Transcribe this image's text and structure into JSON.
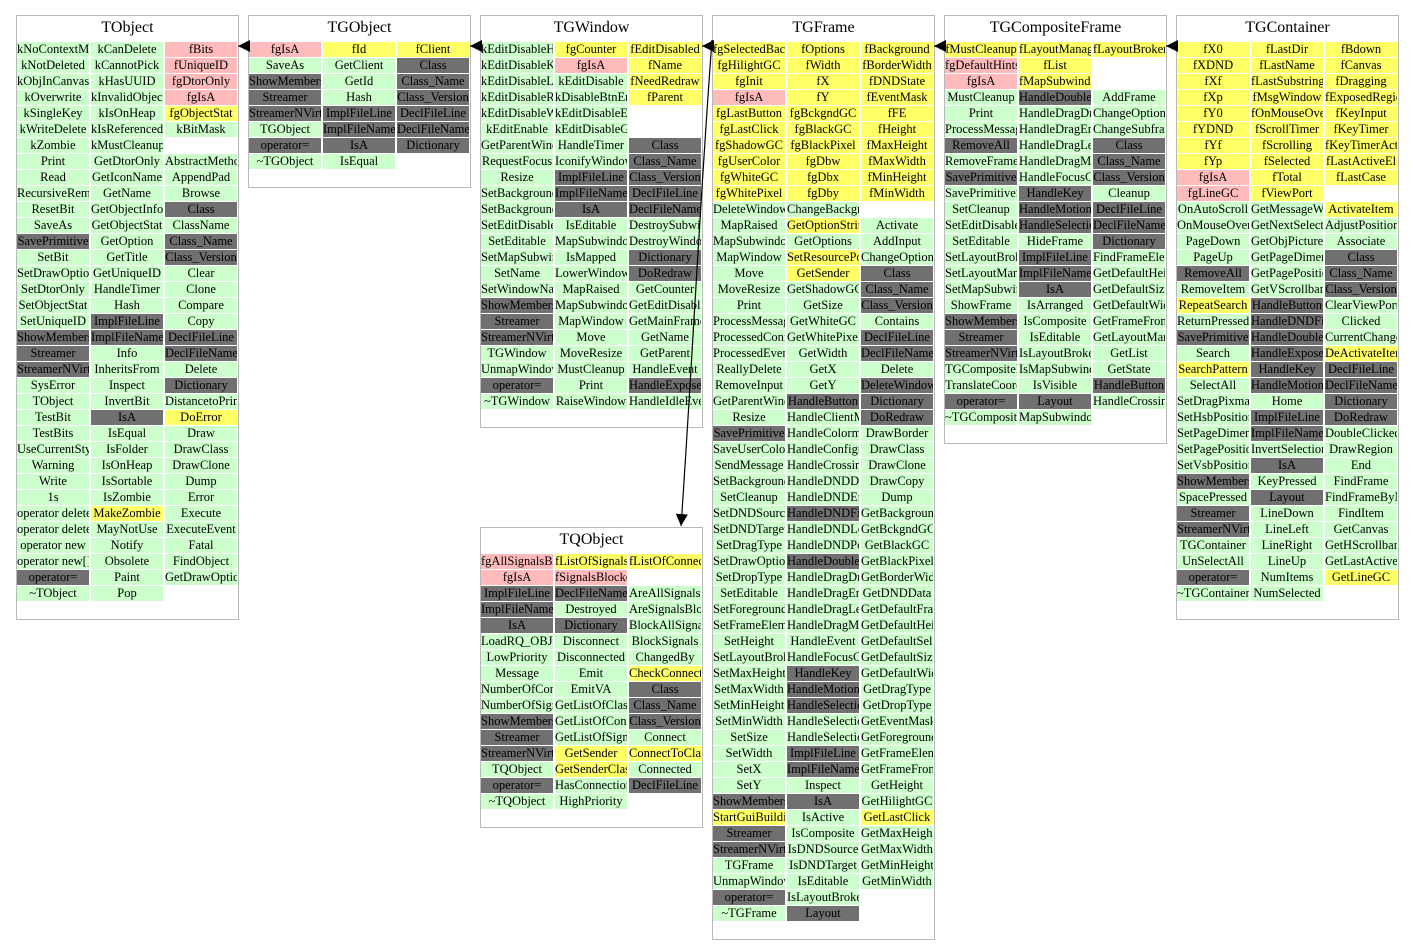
{
  "classes": [
    {
      "name": "TObject",
      "columns": [
        [
          "kNoContextMenu",
          "kNotDeleted",
          "kObjInCanvas",
          "kOverwrite",
          "kSingleKey",
          "kWriteDelete",
          "kZombie",
          "Print",
          "Read",
          "RecursiveRemove",
          "ResetBit",
          "SaveAs",
          "SavePrimitive",
          "SetBit",
          "SetDrawOption",
          "SetDtorOnly",
          "SetObjectStat",
          "SetUniqueID",
          "ShowMembers",
          "Streamer",
          "StreamerNVirtual",
          "SysError",
          "TObject",
          "TestBit",
          "TestBits",
          "UseCurrentStyle",
          "Warning",
          "Write",
          "1s",
          "operator delete",
          "operator delete[]",
          "operator new",
          "operator new[]",
          "operator=",
          "~TObject"
        ],
        [
          "kCanDelete",
          "kCannotPick",
          "kHasUUID",
          "kInvalidObject",
          "kIsOnHeap",
          "kIsReferenced",
          "kMustCleanup",
          "GetDtorOnly",
          "GetIconName",
          "GetName",
          "GetObjectInfo",
          "GetObjectStat",
          "GetOption",
          "GetTitle",
          "GetUniqueID",
          "HandleTimer",
          "Hash",
          "ImplFileLine",
          "ImplFileName",
          "Info",
          "InheritsFrom",
          "Inspect",
          "InvertBit",
          "IsA",
          "IsEqual",
          "IsFolder",
          "IsOnHeap",
          "IsSortable",
          "IsZombie",
          "MakeZombie",
          "MayNotUse",
          "Notify",
          "Obsolete",
          "Paint",
          "Pop"
        ],
        [
          "fBits",
          "fUniqueID",
          "fgDtorOnly",
          "fgIsA",
          "fgObjectStat",
          "kBitMask",
          "",
          "AbstractMethod",
          "AppendPad",
          "Browse",
          "Class",
          "ClassName",
          "Class_Name",
          "Class_Version",
          "Clear",
          "Clone",
          "Compare",
          "Copy",
          "DeclFileLine",
          "DeclFileName",
          "Delete",
          "Dictionary",
          "DistancetoPrimitive",
          "DoError",
          "Draw",
          "DrawClass",
          "DrawClone",
          "Dump",
          "Error",
          "Execute",
          "ExecuteEvent",
          "Fatal",
          "FindObject",
          "GetDrawOption"
        ]
      ]
    },
    {
      "name": "TGObject",
      "columns": [
        [
          "fgIsA",
          "SaveAs",
          "ShowMembers",
          "Streamer",
          "StreamerNVirtual",
          "TGObject",
          "operator=",
          "~TGObject"
        ],
        [
          "fId",
          "GetClient",
          "GetId",
          "Hash",
          "ImplFileLine",
          "ImplFileName",
          "IsA",
          "IsEqual"
        ],
        [
          "fClient",
          "Class",
          "Class_Name",
          "Class_Version",
          "DeclFileLine",
          "DeclFileName",
          "Dictionary"
        ]
      ]
    },
    {
      "name": "TGWindow",
      "columns": [
        [
          "kEditDisableHeight",
          "kEditDisableKeyEnable",
          "kEditDisableLayout",
          "kEditDisableResize",
          "kEditDisableWidth",
          "kEditEnable",
          "GetParentWindow",
          "RequestFocus",
          "Resize",
          "SetBackgroundColor",
          "SetBackgroundPixmap",
          "SetEditDisabled",
          "SetEditable",
          "SetMapSubwindows",
          "SetName",
          "SetWindowName",
          "ShowMembers",
          "Streamer",
          "StreamerNVirtual",
          "TGWindow",
          "UnmapWindow",
          "operator=",
          "~TGWindow"
        ],
        [
          "fgCounter",
          "fgIsA",
          "kEditDisable",
          "kDisableBtnEnable",
          "kEditDisableEvents",
          "kEditDisableGrab",
          "HandleTimer",
          "IconifyWindow",
          "ImplFileLine",
          "ImplFileName",
          "IsA",
          "IsEditable",
          "MapSubwindows",
          "IsMapped",
          "LowerWindow",
          "MapRaised",
          "MapSubwindows",
          "MapWindow",
          "Move",
          "MoveResize",
          "MustCleanup",
          "Print",
          "RaiseWindow"
        ],
        [
          "fEditDisabled",
          "fName",
          "fNeedRedraw",
          "fParent",
          "",
          "",
          "Class",
          "Class_Name",
          "Class_Version",
          "DeclFileLine",
          "DeclFileName",
          "DestroySubwindows",
          "DestroyWindow",
          "Dictionary",
          "DoRedraw",
          "GetCounter",
          "GetEditDisabled",
          "GetMainFrame",
          "GetName",
          "GetParent",
          "HandleEvent",
          "HandleExpose",
          "HandleIdleEvent"
        ]
      ]
    },
    {
      "name": "TGFrame",
      "columns": [
        [
          "fgSelectedBackground",
          "fgHilightGC",
          "fgInit",
          "fgIsA",
          "fgLastButton",
          "fgLastClick",
          "fgShadowGC",
          "fgUserColor",
          "fgWhiteGC",
          "fgWhitePixel",
          "DeleteWindowCallback",
          "MapRaised",
          "MapSubwindows",
          "MapWindow",
          "Move",
          "MoveResize",
          "Print",
          "ProcessMessage",
          "ProcessedConfigure",
          "ProcessedEvent",
          "ReallyDelete",
          "RemoveInput",
          "GetParentWindow",
          "Resize",
          "SavePrimitive",
          "SaveUserColor",
          "SendMessage",
          "SetBackgroundColor",
          "SetCleanup",
          "SetDNDSource",
          "SetDNDTarget",
          "SetDragType",
          "SetDrawOption",
          "SetDropType",
          "SetEditable",
          "SetForegroundColor",
          "SetFrameElement",
          "SetHeight",
          "SetLayoutBroken",
          "SetMaxHeight",
          "SetMaxWidth",
          "SetMinHeight",
          "SetMinWidth",
          "SetSize",
          "SetWidth",
          "SetX",
          "SetY",
          "ShowMembers",
          "StartGuiBuilding",
          "Streamer",
          "StreamerNVirtual",
          "TGFrame",
          "UnmapWindow",
          "operator=",
          "~TGFrame"
        ],
        [
          "fOptions",
          "fWidth",
          "fX",
          "fY",
          "fgBckgndGC",
          "fgBlackGC",
          "fgBlackPixel",
          "fgDbw",
          "fgDbx",
          "fgDby",
          "ChangeBackground",
          "GetOptionString",
          "GetOptions",
          "SetResourcePool",
          "GetSender",
          "GetShadowGC",
          "GetSize",
          "GetWhiteGC",
          "GetWhitePixel",
          "GetWidth",
          "GetX",
          "GetY",
          "HandleButton",
          "HandleClientMessage",
          "HandleColormapChange",
          "HandleConfigureNotify",
          "HandleCrossing",
          "HandleDNDDrop",
          "HandleDNDEnter",
          "HandleDNDFinished",
          "HandleDNDLeave",
          "HandleDNDPosition",
          "HandleDoubleClick",
          "HandleDragDrop",
          "HandleDragEnter",
          "HandleDragLeave",
          "HandleDragMotion",
          "HandleEvent",
          "HandleFocusChange",
          "HandleKey",
          "HandleMotion",
          "HandleSelection",
          "HandleSelectionClear",
          "HandleSelectionRequest",
          "ImplFileLine",
          "ImplFileName",
          "Inspect",
          "IsA",
          "IsActive",
          "IsComposite",
          "IsDNDSource",
          "IsDNDTarget",
          "IsEditable",
          "IsLayoutBroken",
          "Layout"
        ],
        [
          "fBackground",
          "fBorderWidth",
          "fDNDState",
          "fEventMask",
          "fFE",
          "fHeight",
          "fMaxHeight",
          "fMaxWidth",
          "fMinHeight",
          "fMinWidth",
          "",
          "Activate",
          "AddInput",
          "ChangeOptions",
          "Class",
          "Class_Name",
          "Class_Version",
          "Contains",
          "DeclFileLine",
          "DeclFileName",
          "Delete",
          "DeleteWindow",
          "Dictionary",
          "DoRedraw",
          "DrawBorder",
          "DrawClass",
          "DrawClone",
          "DrawCopy",
          "Dump",
          "GetBackground",
          "GetBckgndGC",
          "GetBlackGC",
          "GetBlackPixel",
          "GetBorderWidth",
          "GetDNDData",
          "GetDefaultFrameBackground",
          "GetDefaultHeight",
          "GetDefaultSelectedBackground",
          "GetDefaultSize",
          "GetDefaultWidth",
          "GetDragType",
          "GetDropType",
          "GetEventMask",
          "GetForeground",
          "GetFrameElement",
          "GetFrameFromPoint",
          "GetHeight",
          "GetHilightGC",
          "GetLastClick",
          "GetMaxHeight",
          "GetMaxWidth",
          "GetMinHeight",
          "GetMinWidth"
        ]
      ]
    },
    {
      "name": "TGCompositeFrame",
      "columns": [
        [
          "fMustCleanup",
          "fgDefaultHints",
          "fgIsA",
          "MustCleanup",
          "Print",
          "ProcessMessage",
          "RemoveAll",
          "RemoveFrame",
          "SavePrimitive",
          "SavePrimitiveSubframes",
          "SetCleanup",
          "SetEditDisabled",
          "SetEditable",
          "SetLayoutBroken",
          "SetLayoutManager",
          "SetMapSubwindows",
          "ShowFrame",
          "ShowMembers",
          "Streamer",
          "StreamerNVirtual",
          "TGCompositeFrame",
          "TranslateCoordinates",
          "operator=",
          "~TGCompositeFrame"
        ],
        [
          "fLayoutManager",
          "fList",
          "fMapSubwindows",
          "HandleDoubleClick",
          "HandleDragDrop",
          "HandleDragEnter",
          "HandleDragLeave",
          "HandleDragMotion",
          "HandleFocusChange",
          "HandleKey",
          "HandleMotion",
          "HandleSelection",
          "HideFrame",
          "ImplFileLine",
          "ImplFileName",
          "IsA",
          "IsArranged",
          "IsComposite",
          "IsEditable",
          "IsLayoutBroken",
          "IsMapSubwindows",
          "IsVisible",
          "Layout",
          "MapSubwindows"
        ],
        [
          "fLayoutBroken",
          "",
          "",
          "AddFrame",
          "ChangeOptions",
          "ChangeSubframesBackground",
          "Class",
          "Class_Name",
          "Class_Version",
          "Cleanup",
          "DeclFileLine",
          "DeclFileName",
          "Dictionary",
          "FindFrameElement",
          "GetDefaultHeight",
          "GetDefaultSize",
          "GetDefaultWidth",
          "GetFrameFromPoint",
          "GetLayoutManager",
          "GetList",
          "GetState",
          "HandleButton",
          "HandleCrossing"
        ]
      ]
    },
    {
      "name": "TGContainer",
      "columns": [
        [
          "fX0",
          "fXDND",
          "fXf",
          "fXp",
          "fY0",
          "fYDND",
          "fYf",
          "fYp",
          "fgIsA",
          "fgLineGC",
          "OnAutoScroll",
          "OnMouseOver",
          "PageDown",
          "PageUp",
          "RemoveAll",
          "RemoveItem",
          "RepeatSearch",
          "ReturnPressed",
          "SavePrimitive",
          "Search",
          "SearchPattern",
          "SelectAll",
          "SetDragPixmap",
          "SetHsbPosition",
          "SetPageDimension",
          "SetPagePosition",
          "SetVsbPosition",
          "ShowMembers",
          "SpacePressed",
          "Streamer",
          "StreamerNVirtual",
          "TGContainer",
          "UnSelectAll",
          "operator=",
          "~TGContainer"
        ],
        [
          "fLastDir",
          "fLastName",
          "fLastSubstring",
          "fMsgWindow",
          "fOnMouseOver",
          "fScrollTimer",
          "fScrolling",
          "fSelected",
          "fTotal",
          "fViewPort",
          "GetMessageWindow",
          "GetNextSelected",
          "GetObjPicture",
          "GetPageDimension",
          "GetPagePosition",
          "GetVScrollbar",
          "HandleButton",
          "HandleDNDFinished",
          "HandleDoubleClick",
          "HandleExpose",
          "HandleKey",
          "HandleMotion",
          "Home",
          "ImplFileLine",
          "ImplFileName",
          "InvertSelection",
          "IsA",
          "KeyPressed",
          "Layout",
          "LineDown",
          "LineLeft",
          "LineRight",
          "LineUp",
          "NumItems",
          "NumSelected"
        ],
        [
          "fBdown",
          "fCanvas",
          "fDragging",
          "fExposedRegion",
          "fKeyInput",
          "fKeyTimer",
          "fKeyTimerActive",
          "fLastActiveEl",
          "fLastCase",
          "",
          "ActivateItem",
          "AdjustPosition",
          "Associate",
          "Class",
          "Class_Name",
          "Class_Version",
          "ClearViewPort",
          "Clicked",
          "CurrentChanged",
          "DeActivateItem",
          "DeclFileLine",
          "DeclFileName",
          "Dictionary",
          "DoRedraw",
          "DoubleClicked",
          "DrawRegion",
          "End",
          "FindFrame",
          "FindFrameByName",
          "FindItem",
          "GetCanvas",
          "GetHScrollbar",
          "GetLastActive",
          "GetLineGC"
        ]
      ]
    },
    {
      "name": "TQObject",
      "columns": [
        [
          "fgAllSignalsBlocked",
          "fgIsA",
          "ImplFileLine",
          "ImplFileName",
          "IsA",
          "LoadRQ_OBJECT",
          "LowPriority",
          "Message",
          "NumberOfConnections",
          "NumberOfSignals",
          "ShowMembers",
          "Streamer",
          "StreamerNVirtual",
          "TQObject",
          "operator=",
          "~TQObject"
        ],
        [
          "fListOfSignals",
          "fSignalsBlocked",
          "DeclFileName",
          "Destroyed",
          "Dictionary",
          "Disconnect",
          "Disconnected",
          "Emit",
          "EmitVA",
          "GetListOfClassSignals",
          "GetListOfConnections",
          "GetListOfSignals",
          "GetSender",
          "GetSenderClassName",
          "HasConnection",
          "HighPriority"
        ],
        [
          "fListOfConnections",
          "",
          "AreAllSignalsBlocked",
          "AreSignalsBlocked",
          "BlockAllSignals",
          "BlockSignals",
          "ChangedBy",
          "CheckConnectArgs",
          "Class",
          "Class_Name",
          "Class_Version",
          "Connect",
          "ConnectToClass",
          "Connected",
          "DeclFileLine"
        ]
      ]
    }
  ],
  "colors": {
    "method": "#ccffcc",
    "member": "#ffff66",
    "static": "#ffbbbb",
    "inherited": "#707070",
    "border": "#b9b9b9",
    "arrow": "#000000"
  }
}
